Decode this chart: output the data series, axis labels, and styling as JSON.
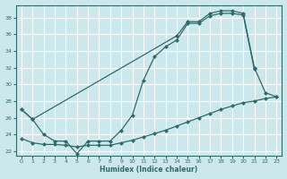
{
  "bg_color": "#cce8ec",
  "grid_color": "#ffffff",
  "line_color": "#2d6b6b",
  "xlabel": "Humidex (Indice chaleur)",
  "xlim": [
    -0.5,
    23.5
  ],
  "ylim": [
    21.5,
    39.5
  ],
  "yticks": [
    22,
    24,
    26,
    28,
    30,
    32,
    34,
    36,
    38
  ],
  "xticks": [
    0,
    1,
    2,
    3,
    4,
    5,
    6,
    7,
    8,
    9,
    10,
    11,
    12,
    13,
    14,
    15,
    16,
    17,
    18,
    19,
    20,
    21,
    22,
    23
  ],
  "sA_x": [
    0,
    1,
    2,
    3,
    4,
    5,
    6,
    7,
    8,
    9,
    10,
    11,
    12,
    13,
    14,
    15,
    16,
    17,
    18,
    19,
    20,
    21
  ],
  "sA_y": [
    27.0,
    25.8,
    24.0,
    23.2,
    23.2,
    21.7,
    23.2,
    23.2,
    23.2,
    24.5,
    26.3,
    30.5,
    33.3,
    34.5,
    35.3,
    37.3,
    37.3,
    38.2,
    38.5,
    38.5,
    38.3,
    31.8
  ],
  "sB_x": [
    0,
    1,
    14,
    15,
    16,
    17,
    18,
    19,
    20,
    21,
    22,
    23
  ],
  "sB_y": [
    27.0,
    25.8,
    35.8,
    37.5,
    37.5,
    38.5,
    38.8,
    38.8,
    38.5,
    32.0,
    29.0,
    28.5
  ],
  "sC_x": [
    0,
    1,
    2,
    3,
    4,
    5,
    6,
    7,
    8,
    9,
    10,
    11,
    12,
    13,
    14,
    15,
    16,
    17,
    18,
    19,
    20,
    21,
    22,
    23
  ],
  "sC_y": [
    23.5,
    23.0,
    22.8,
    22.8,
    22.7,
    22.5,
    22.7,
    22.7,
    22.7,
    23.0,
    23.3,
    23.7,
    24.1,
    24.5,
    25.0,
    25.5,
    26.0,
    26.5,
    27.0,
    27.4,
    27.8,
    28.0,
    28.3,
    28.5
  ]
}
